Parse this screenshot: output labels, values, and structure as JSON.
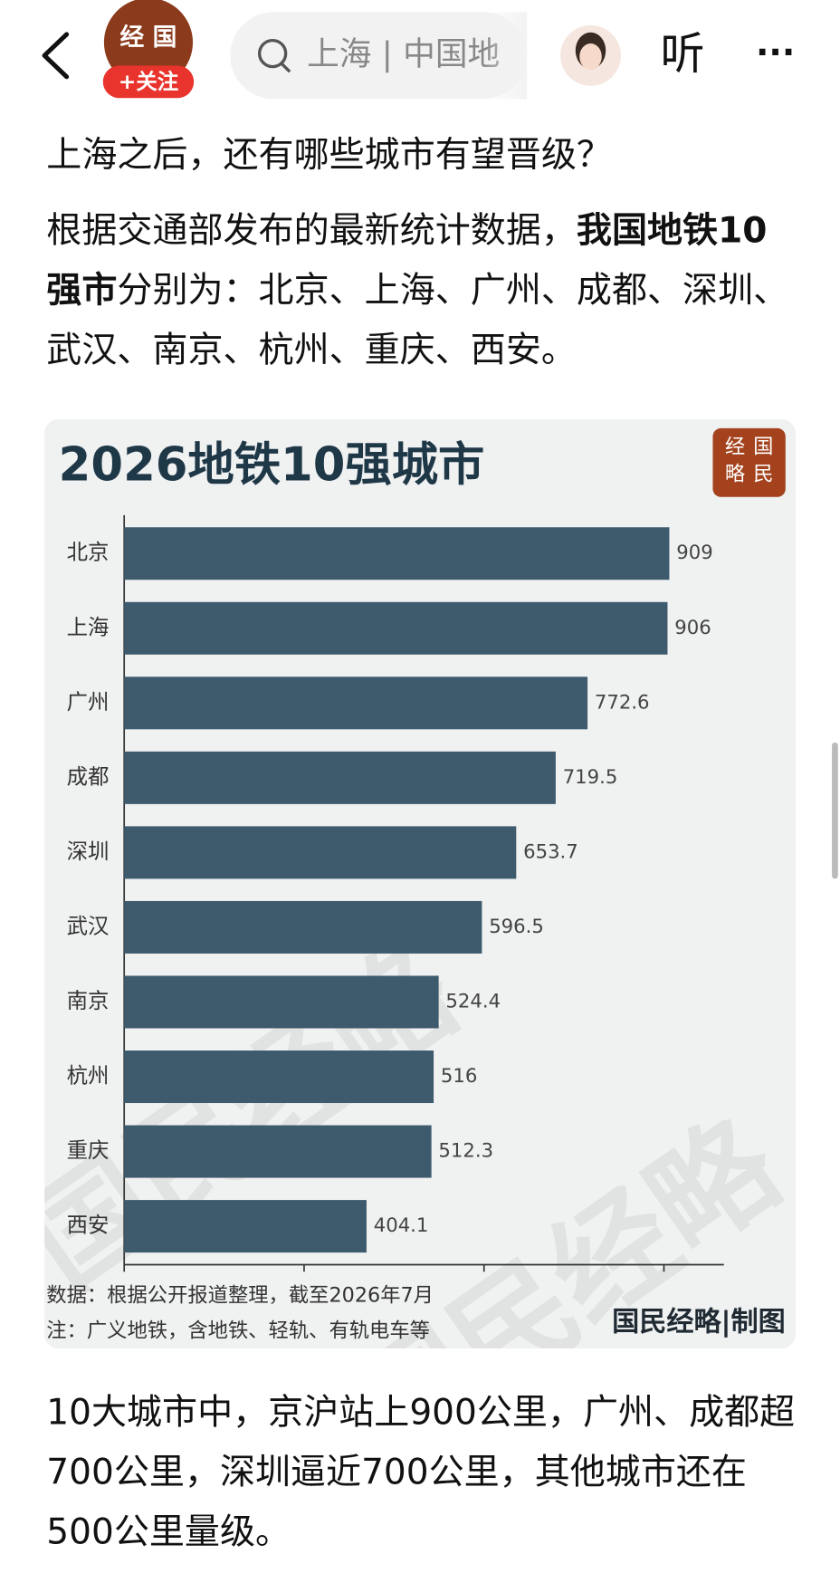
{
  "header": {
    "account_badge": "经 国",
    "follow_button": "+关注",
    "search_text": "上海 | 中国地",
    "listen_button": "听",
    "more_button": "···"
  },
  "article": {
    "heading": "上海之后，还有哪些城市有望晋级？",
    "intro": [
      "根据交通部发布的最新统计数据，",
      "我国地铁10强市",
      "分别为：北京、上海、广州、成都、深圳、武汉、南京、杭州、重庆、西安。"
    ],
    "conclusion": "10大城市中，京沪站上900公里，广州、成都超700公里，深圳逼近700公里，其他城市还在500公里量级。"
  },
  "chart_data": {
    "type": "hbar",
    "title": "2026地铁10强城市",
    "logo": [
      "经",
      "国",
      "略",
      "民"
    ],
    "watermark": "国民经略",
    "categories": [
      "北京",
      "上海",
      "广州",
      "成都",
      "深圳",
      "武汉",
      "南京",
      "杭州",
      "重庆",
      "西安"
    ],
    "values": [
      909,
      906,
      772.6,
      719.5,
      653.7,
      596.5,
      524.4,
      516,
      512.3,
      404.1
    ],
    "color": "#3e5a6d",
    "xlim": [
      0,
      1000
    ],
    "xticks": [
      0,
      300,
      600,
      900
    ],
    "source": "数据：根据公开报道整理，截至2026年7月",
    "note": "注：广义地铁，含地铁、轻轨、有轨电车等",
    "credit": "国民经略|制图"
  }
}
